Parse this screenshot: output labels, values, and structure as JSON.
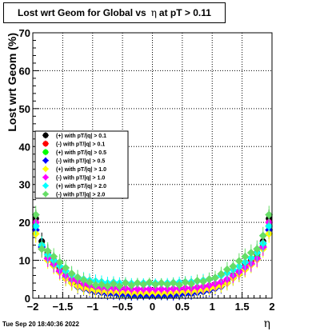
{
  "title": {
    "prefix": "Lost wrt Geom for Global vs",
    "symbol": "η",
    "suffix": "at pT > 0.11"
  },
  "timestamp": "Tue Sep 20 18:40:36 2022",
  "chart_data": {
    "type": "scatter",
    "xlabel": "η",
    "ylabel": "Lost wrt Geom (%)",
    "xlim": [
      -2,
      2
    ],
    "ylim": [
      0,
      70
    ],
    "x_ticks": [
      "−2",
      "−1.5",
      "−1",
      "−0.5",
      "0",
      "0.5",
      "1",
      "1.5",
      "2"
    ],
    "y_ticks": [
      "0",
      "10",
      "20",
      "30",
      "40",
      "50",
      "60",
      "70"
    ],
    "grid": true,
    "legend_position": "left-middle",
    "x": [
      -1.95,
      -1.85,
      -1.75,
      -1.65,
      -1.55,
      -1.45,
      -1.35,
      -1.25,
      -1.15,
      -1.05,
      -0.95,
      -0.85,
      -0.75,
      -0.65,
      -0.55,
      -0.45,
      -0.35,
      -0.25,
      -0.15,
      -0.05,
      0.05,
      0.15,
      0.25,
      0.35,
      0.45,
      0.55,
      0.65,
      0.75,
      0.85,
      0.95,
      1.05,
      1.15,
      1.25,
      1.35,
      1.45,
      1.55,
      1.65,
      1.75,
      1.85,
      1.95
    ],
    "series": [
      {
        "name": "(+) with pT/|q| > 0.1",
        "color": "#000000",
        "marker": "circle",
        "values": [
          21,
          15,
          12,
          10,
          8,
          6,
          4.5,
          3.5,
          3,
          2.5,
          2,
          1.8,
          1.5,
          1.5,
          1.2,
          1.2,
          1,
          1,
          1,
          1,
          1,
          1,
          1,
          1.2,
          1.2,
          1.5,
          1.5,
          1.8,
          2,
          2.5,
          3,
          3.5,
          4.5,
          6,
          7,
          8.5,
          10,
          12,
          15,
          21
        ]
      },
      {
        "name": "(-) with pT/|q| > 0.1",
        "color": "#ff0000",
        "marker": "circle",
        "values": [
          20,
          14,
          11.5,
          9.5,
          7.5,
          5.8,
          4.3,
          3.3,
          2.8,
          2.3,
          1.9,
          1.7,
          1.4,
          1.4,
          1.1,
          1.1,
          0.9,
          0.9,
          0.9,
          0.9,
          0.9,
          0.9,
          0.9,
          0.9,
          1.1,
          1.4,
          1.4,
          1.7,
          1.9,
          2.3,
          2.8,
          3.4,
          4.3,
          5.8,
          6.8,
          8.2,
          9.6,
          11.5,
          14.5,
          20
        ]
      },
      {
        "name": "(+) with pT/|q| > 0.5",
        "color": "#00ff00",
        "marker": "circle",
        "values": [
          19,
          14,
          11,
          9,
          7.2,
          5.5,
          4.2,
          3.2,
          2.6,
          2.2,
          1.8,
          1.6,
          1.3,
          1.3,
          1,
          1,
          0.8,
          0.8,
          0.8,
          0.8,
          0.8,
          0.8,
          0.8,
          0.9,
          1,
          1.3,
          1.3,
          1.6,
          1.8,
          2.2,
          2.7,
          3.2,
          4.2,
          5.5,
          6.5,
          8,
          9.2,
          11,
          14,
          19
        ]
      },
      {
        "name": "(-) with pT/|q| > 0.5",
        "color": "#0000ff",
        "marker": "diamond",
        "values": [
          18,
          13.5,
          10.5,
          8.8,
          7,
          5.3,
          4,
          3,
          2.5,
          2.1,
          1.7,
          1.5,
          1.2,
          1.2,
          1,
          1,
          0.8,
          0.8,
          0.8,
          0.8,
          0.8,
          0.8,
          0.8,
          0.8,
          1,
          1.2,
          1.2,
          1.5,
          1.7,
          2.1,
          2.6,
          3.1,
          4,
          5.3,
          6.3,
          7.7,
          9,
          10.5,
          13.5,
          18
        ]
      },
      {
        "name": "(+) with pT/|q| > 1.0",
        "color": "#ffff00",
        "marker": "diamond",
        "values": [
          17,
          13,
          10,
          8.5,
          6.8,
          5.2,
          4,
          3.2,
          2.7,
          2.4,
          2,
          1.9,
          1.7,
          1.8,
          1.6,
          1.7,
          1.5,
          1.5,
          1.5,
          1.5,
          1.5,
          1.5,
          1.5,
          1.6,
          1.7,
          1.8,
          1.8,
          2,
          2.2,
          2.5,
          2.9,
          3.3,
          4,
          5.3,
          6.3,
          7.6,
          8.8,
          10.2,
          13,
          17
        ]
      },
      {
        "name": "(-) with pT/|q| > 1.0",
        "color": "#ff00ff",
        "marker": "diamond",
        "values": [
          20,
          13,
          10.5,
          9,
          7.2,
          6,
          5,
          4.5,
          3.8,
          3.4,
          3,
          2.8,
          2.6,
          2.7,
          2.5,
          2.6,
          2.4,
          2.4,
          2.4,
          2.4,
          2.4,
          2.4,
          2.4,
          2.5,
          2.6,
          2.7,
          2.7,
          2.9,
          3.1,
          3.4,
          3.8,
          4.3,
          5,
          6,
          7,
          8.2,
          9.2,
          10.5,
          13.5,
          20
        ]
      },
      {
        "name": "(+) with pT/|q| > 2.0",
        "color": "#00ffff",
        "marker": "diamond",
        "values": [
          19,
          14,
          11.5,
          10,
          8.5,
          7.2,
          6.2,
          5.5,
          5,
          4.7,
          4.5,
          4.3,
          4,
          4.2,
          4,
          4.1,
          3.9,
          4,
          4,
          4,
          4,
          4,
          4,
          4.1,
          4.2,
          4.3,
          4.3,
          4.5,
          4.7,
          5,
          5.4,
          6,
          6.7,
          7.5,
          8.4,
          9.5,
          10.6,
          12,
          14.5,
          19
        ]
      },
      {
        "name": "(-) with pT/|q| > 2.0",
        "color": "#66dd66",
        "marker": "diamond",
        "values": [
          22,
          13,
          12.5,
          11,
          9.5,
          8,
          6.5,
          5.5,
          4.8,
          4.2,
          3.5,
          3.6,
          3.2,
          3.8,
          3.2,
          4,
          3.4,
          4,
          3.6,
          4.2,
          3.6,
          4,
          3.6,
          4,
          3.5,
          4.2,
          3.8,
          4.6,
          4.4,
          5,
          5.4,
          6.4,
          7.6,
          8.4,
          9.8,
          11,
          12,
          13,
          16.5,
          22
        ]
      }
    ]
  }
}
